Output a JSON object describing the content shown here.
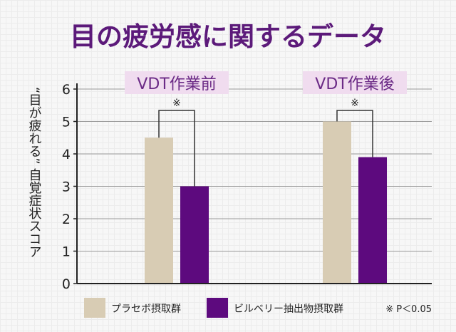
{
  "chart_data": {
    "type": "bar",
    "title": "目の疲労感に関するデータ",
    "ylabel": "“目が疲れる” 自覚症状スコア",
    "xlabel": "",
    "ylim": [
      0,
      6
    ],
    "yticks": [
      0,
      1,
      2,
      3,
      4,
      5,
      6
    ],
    "ytick_labels": [
      "0",
      "1",
      "2",
      "3",
      "4",
      "5",
      "6"
    ],
    "grid": true,
    "categories": [
      "VDT作業前",
      "VDT作業後"
    ],
    "series": [
      {
        "name": "プラセボ摂取群",
        "values": [
          4.5,
          5.0
        ]
      },
      {
        "name": "ビルベリー抽出物摂取群",
        "values": [
          3.0,
          3.9
        ]
      }
    ],
    "significance_marker": "※",
    "footnote": "※ P＜0.05",
    "colors": {
      "title": "#5c1a7a",
      "placebo": "#d8ccb4",
      "bilberry": "#5d0a7e",
      "category_label_bg": "#f0dcef",
      "category_label_text": "#6b2a86",
      "axis": "#222222",
      "grid": "#9a9a9a",
      "bracket": "#333333"
    }
  }
}
